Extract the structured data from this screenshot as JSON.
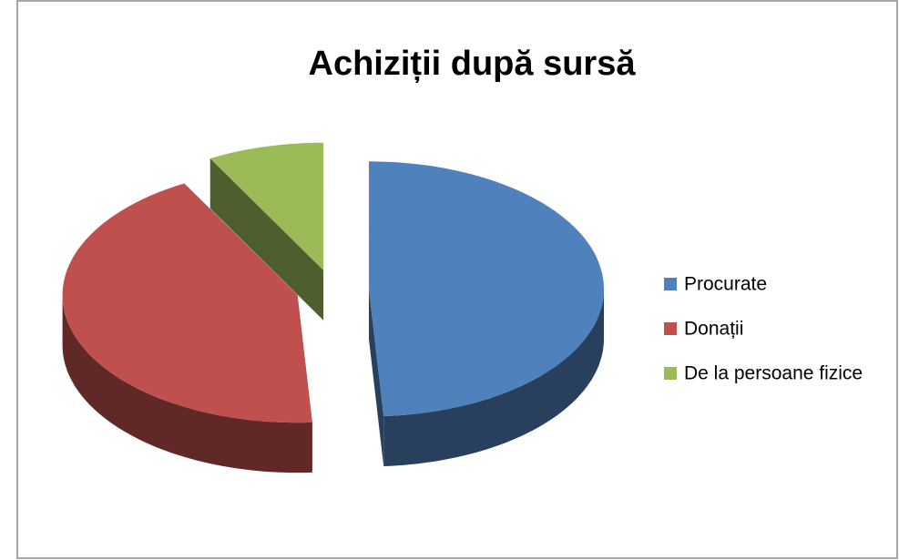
{
  "chart_data": {
    "type": "pie",
    "title": "Achiziții după sursă",
    "categories": [
      "Procurate",
      "Donații",
      "De la persoane fizice"
    ],
    "values": [
      49,
      43,
      8
    ],
    "colors": [
      "#4f81bd",
      "#c0504d",
      "#9bbb59"
    ],
    "legend": "right"
  }
}
